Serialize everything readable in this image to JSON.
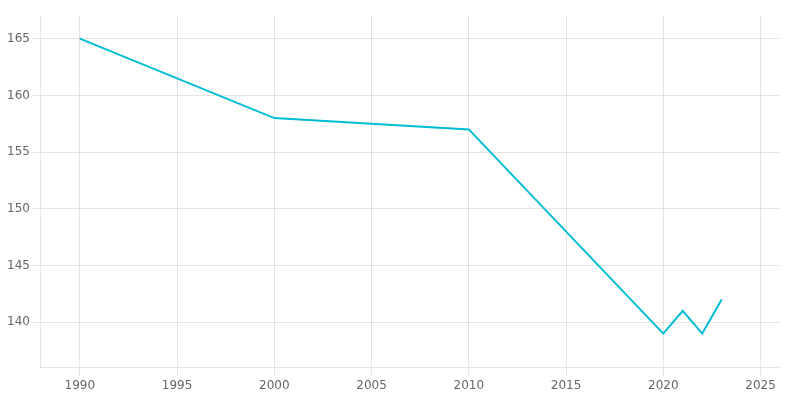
{
  "chart_data": {
    "type": "line",
    "x": [
      1990,
      2000,
      2005,
      2010,
      2020,
      2021,
      2022,
      2023
    ],
    "values": [
      165,
      158,
      157.5,
      157,
      139,
      141,
      139,
      142
    ],
    "color": "#00BCD4",
    "xlim": [
      1988,
      2026
    ],
    "ylim": [
      136,
      167
    ],
    "xticks": [
      1990,
      1995,
      2000,
      2005,
      2010,
      2015,
      2020,
      2025
    ],
    "yticks": [
      140,
      145,
      150,
      155,
      160,
      165
    ],
    "grid": true
  }
}
